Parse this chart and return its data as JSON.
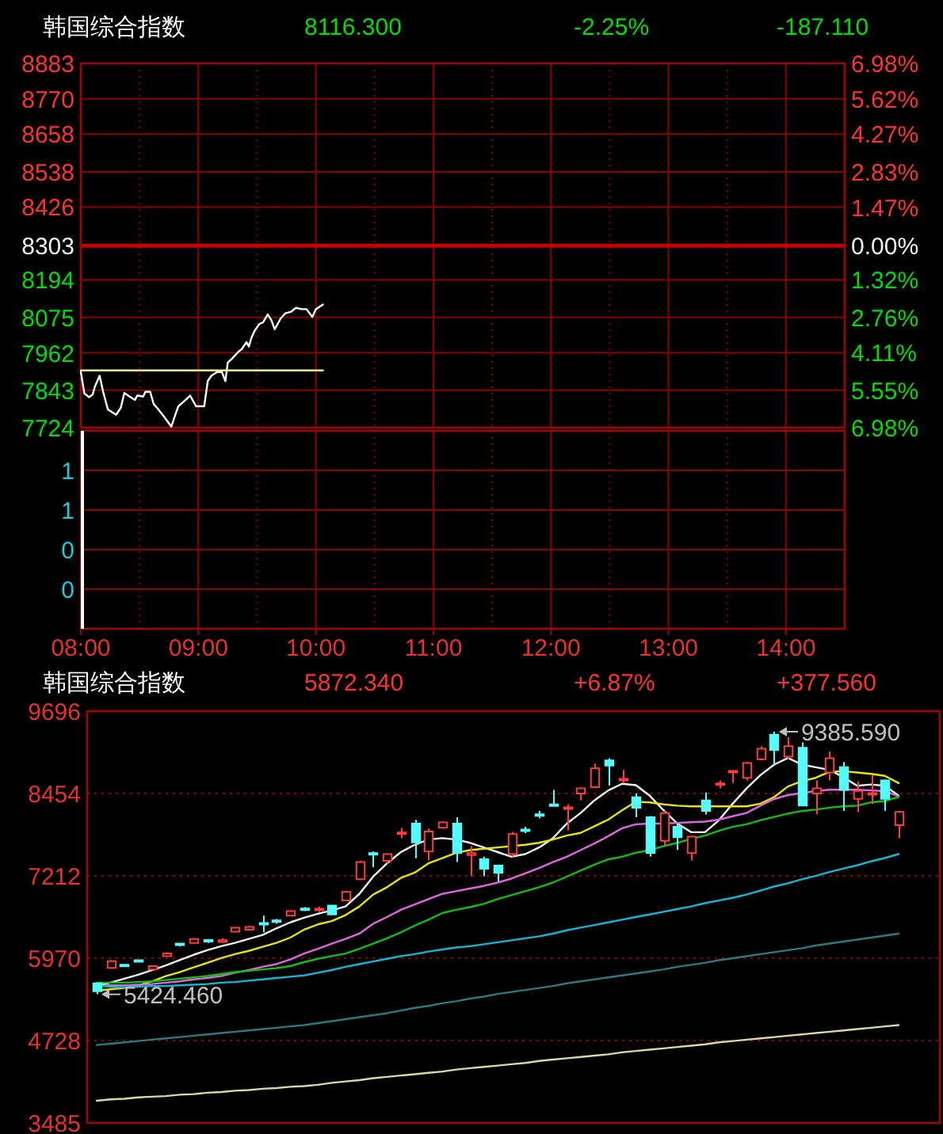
{
  "chart_data": [
    {
      "type": "line",
      "title": "韩国综合指数",
      "annotations": [
        "8116.300",
        "-2.25%",
        "-187.110"
      ],
      "series": [
        {
          "x": [
            8.0,
            8.03,
            8.07,
            8.1,
            8.12,
            8.16,
            8.19,
            8.23,
            8.3,
            8.34,
            8.37,
            8.41,
            8.46,
            8.48,
            8.53,
            8.55,
            8.59,
            8.62,
            8.66,
            8.72,
            8.77,
            8.8,
            8.83,
            8.89,
            8.93,
            8.98,
            9.05,
            9.08,
            9.11,
            9.16,
            9.2,
            9.23,
            9.25,
            9.29,
            9.34,
            9.37,
            9.41,
            9.43,
            9.45,
            9.48,
            9.52,
            9.55,
            9.59,
            9.62,
            9.65,
            9.7,
            9.74,
            9.79,
            9.83,
            9.88,
            9.92,
            9.97,
            10.0,
            10.06
          ],
          "values": [
            7901,
            7833,
            7821,
            7829,
            7855,
            7889,
            7838,
            7782,
            7765,
            7787,
            7834,
            7824,
            7812,
            7826,
            7823,
            7838,
            7838,
            7799,
            7782,
            7753,
            7727,
            7761,
            7792,
            7812,
            7826,
            7792,
            7792,
            7872,
            7889,
            7901,
            7901,
            7872,
            7931,
            7945,
            7965,
            7974,
            7996,
            7982,
            8008,
            8033,
            8054,
            8059,
            8084,
            8067,
            8037,
            8071,
            8088,
            8093,
            8105,
            8101,
            8101,
            8076,
            8101,
            8116
          ],
          "color": "#ffffff"
        },
        {
          "x": [
            8.0,
            10.06
          ],
          "values": [
            7906,
            7906
          ],
          "color": "#f0f080"
        }
      ],
      "xlim": [
        8,
        14.5
      ],
      "ylim": [
        7724,
        8883
      ],
      "yticks": [
        8883,
        8770,
        8658,
        8538,
        8426,
        8303,
        8194,
        8075,
        7962,
        7843,
        7724
      ],
      "y2lim": [
        -6.98,
        6.98
      ],
      "y2ticks": [
        {
          "value": 6.98,
          "label": "6.98%"
        },
        {
          "value": 5.62,
          "label": "5.62%"
        },
        {
          "value": 4.27,
          "label": "4.27%"
        },
        {
          "value": 2.83,
          "label": "2.83%"
        },
        {
          "value": 1.47,
          "label": "1.47%"
        },
        {
          "value": 0,
          "label": "0.00%"
        },
        {
          "value": -1.32,
          "label": "1.32%"
        },
        {
          "value": -2.76,
          "label": "2.76%"
        },
        {
          "value": -4.11,
          "label": "4.11%"
        },
        {
          "value": -5.55,
          "label": "5.55%"
        },
        {
          "value": -6.98,
          "label": "6.98%"
        }
      ],
      "ref_lines": [
        {
          "axis": "y",
          "value": 8303,
          "color": "#c80000"
        }
      ],
      "grid": true,
      "tick_labels": "y"
    },
    {
      "type": "bar",
      "series": [
        {
          "x": [
            8
          ],
          "values": [
            1
          ],
          "color": "#ffffff"
        }
      ],
      "xlim": [
        8,
        14.5
      ],
      "xticks": [
        {
          "value": 8,
          "label": "08:00"
        },
        {
          "value": 8.5,
          "label": null
        },
        {
          "value": 9,
          "label": "09:00"
        },
        {
          "value": 9.5,
          "label": null
        },
        {
          "value": 10,
          "label": "10:00"
        },
        {
          "value": 10.5,
          "label": null
        },
        {
          "value": 11,
          "label": "11:00"
        },
        {
          "value": 11.5,
          "label": null
        },
        {
          "value": 12,
          "label": "12:00"
        },
        {
          "value": 12.5,
          "label": null
        },
        {
          "value": 13,
          "label": "13:00"
        },
        {
          "value": 13.5,
          "label": null
        },
        {
          "value": 14,
          "label": "14:00"
        }
      ],
      "ylim": [
        0,
        1
      ],
      "yticks": [
        {
          "value": 0.8,
          "label": "1"
        },
        {
          "value": 0.6,
          "label": "1"
        },
        {
          "value": 0.4,
          "label": "0"
        },
        {
          "value": 0.2,
          "label": "0"
        }
      ],
      "grid": true
    },
    {
      "type": "candlestick",
      "title": "韩国综合指数",
      "annotations": [
        "5872.340",
        "+6.87%",
        "+377.560",
        "9385.590",
        "5424.460"
      ],
      "categories": [
        null,
        null,
        null,
        null,
        null,
        null,
        null,
        null,
        null,
        null,
        null,
        null,
        null,
        null,
        null,
        null,
        null,
        null,
        null,
        null,
        null,
        null,
        null,
        null,
        null,
        null,
        null,
        null,
        null,
        null,
        null,
        null,
        null,
        null,
        null,
        null,
        null,
        null,
        null,
        null,
        null,
        null,
        null,
        null,
        null,
        null,
        null,
        null,
        null,
        null,
        null,
        null,
        null,
        null,
        null,
        null,
        null,
        null,
        null
      ],
      "ohlc": [
        [
          5590,
          5602,
          5424.46,
          5470
        ],
        [
          5823,
          5940,
          5815,
          5925
        ],
        [
          5870,
          5880,
          5840,
          5855
        ],
        [
          5940,
          5950,
          5915,
          5925
        ],
        [
          5800,
          5860,
          5790,
          5850
        ],
        [
          6000,
          6060,
          5990,
          6040
        ],
        [
          6190,
          6200,
          6150,
          6170
        ],
        [
          6200,
          6275,
          6190,
          6260
        ],
        [
          6245,
          6260,
          6200,
          6225
        ],
        [
          6215,
          6270,
          6200,
          6240
        ],
        [
          6370,
          6440,
          6360,
          6430
        ],
        [
          6400,
          6460,
          6390,
          6440
        ],
        [
          6500,
          6610,
          6360,
          6480
        ],
        [
          6540,
          6560,
          6490,
          6520
        ],
        [
          6610,
          6690,
          6600,
          6680
        ],
        [
          6720,
          6740,
          6680,
          6700
        ],
        [
          6700,
          6747,
          6667,
          6715
        ],
        [
          6763,
          6775,
          6620,
          6628
        ],
        [
          6842,
          6985,
          6830,
          6969
        ],
        [
          7160,
          7437,
          7160,
          7421
        ],
        [
          7556,
          7580,
          7342,
          7540
        ],
        [
          7437,
          7550,
          7398,
          7540
        ],
        [
          7850,
          7937,
          7779,
          7866
        ],
        [
          8001,
          8056,
          7477,
          7715
        ],
        [
          7580,
          7921,
          7445,
          7882
        ],
        [
          7937,
          8033,
          7921,
          8017
        ],
        [
          8001,
          8096,
          7421,
          7556
        ],
        [
          7525,
          7660,
          7207,
          7556
        ],
        [
          7461,
          7501,
          7207,
          7318
        ],
        [
          7366,
          7382,
          7128,
          7255
        ],
        [
          7540,
          7874,
          7501,
          7842
        ],
        [
          7910,
          7953,
          7858,
          7900
        ],
        [
          8140,
          8191,
          8080,
          8130
        ],
        [
          8290,
          8509,
          8271,
          8280
        ],
        [
          8230,
          8294,
          7898,
          8245
        ],
        [
          8453,
          8540,
          8350,
          8532
        ],
        [
          8548,
          8906,
          8532,
          8834
        ],
        [
          8953,
          8985,
          8572,
          8874
        ],
        [
          8660,
          8810,
          8612,
          8675
        ],
        [
          8398,
          8453,
          8096,
          8239
        ],
        [
          8096,
          8112,
          7501,
          7556
        ],
        [
          7739,
          8191,
          7660,
          8159
        ],
        [
          7953,
          8001,
          7604,
          7794
        ],
        [
          7556,
          7818,
          7445,
          7802
        ],
        [
          8350,
          8469,
          8136,
          8191
        ],
        [
          8590,
          8652,
          8532,
          8605
        ],
        [
          8780,
          8810,
          8612,
          8795
        ],
        [
          8691,
          8929,
          8652,
          8913
        ],
        [
          8969,
          9167,
          8953,
          9128
        ],
        [
          9342,
          9385.59,
          8890,
          9112
        ],
        [
          9009,
          9302,
          8969,
          9167
        ],
        [
          9144,
          9223,
          8271,
          8271
        ],
        [
          8453,
          8652,
          8136,
          8532
        ],
        [
          8771,
          9088,
          8652,
          8985
        ],
        [
          8850,
          8929,
          8191,
          8509
        ],
        [
          8374,
          8636,
          8176,
          8493
        ],
        [
          8445,
          8731,
          8294,
          8460
        ],
        [
          8652,
          8667,
          8191,
          8374
        ],
        [
          7977,
          8191,
          7779,
          8176
        ]
      ],
      "colors": [
        "#54fcfc",
        "#ff3c3c",
        "#54fcfc",
        "#54fcfc",
        "#ff3c3c",
        "#ff3c3c",
        "#54fcfc",
        "#ff3c3c",
        "#54fcfc",
        "#ff3c3c",
        "#ff3c3c",
        "#ff3c3c",
        "#54fcfc",
        "#54fcfc",
        "#ff3c3c",
        "#54fcfc",
        "#ff3c3c",
        "#54fcfc",
        "#ff3c3c",
        "#ff3c3c",
        "#54fcfc",
        "#ff3c3c",
        "#ff3c3c",
        "#54fcfc",
        "#ff3c3c",
        "#ff3c3c",
        "#54fcfc",
        "#ff3c3c",
        "#54fcfc",
        "#54fcfc",
        "#ff3c3c",
        "#54fcfc",
        "#54fcfc",
        "#54fcfc",
        "#ff3c3c",
        "#ff3c3c",
        "#ff3c3c",
        "#54fcfc",
        "#ff3c3c",
        "#54fcfc",
        "#54fcfc",
        "#ff3c3c",
        "#54fcfc",
        "#ff3c3c",
        "#54fcfc",
        "#ff3c3c",
        "#ff3c3c",
        "#ff3c3c",
        "#ff3c3c",
        "#54fcfc",
        "#ff3c3c",
        "#54fcfc",
        "#ff3c3c",
        "#ff3c3c",
        "#54fcfc",
        "#ff3c3c",
        "#ff3c3c",
        "#54fcfc",
        "#ff3c3c"
      ],
      "series": [
        {
          "type": "line",
          "color": "#f0f0f0",
          "values": [
            5550,
            5600,
            5660,
            5720,
            5790,
            5860,
            5940,
            6020,
            6090,
            6150,
            6200,
            6260,
            6320,
            6420,
            6510,
            6580,
            6640,
            6690,
            6750,
            6940,
            7200,
            7400,
            7570,
            7680,
            7760,
            7780,
            7760,
            7710,
            7640,
            7570,
            7500,
            7540,
            7640,
            7780,
            8000,
            8160,
            8350,
            8500,
            8600,
            8580,
            8420,
            8200,
            8000,
            7870,
            7870,
            8050,
            8300,
            8530,
            8730,
            8890,
            8990,
            8890,
            8850,
            8810,
            8700,
            8570,
            8590,
            8570,
            8420
          ]
        },
        {
          "type": "line",
          "color": "#e6e600",
          "values": [
            5480,
            5500,
            5520,
            5560,
            5620,
            5700,
            5760,
            5830,
            5900,
            5970,
            6030,
            6080,
            6140,
            6200,
            6280,
            6400,
            6480,
            6530,
            6620,
            6750,
            6930,
            7040,
            7180,
            7260,
            7400,
            7480,
            7560,
            7600,
            7620,
            7640,
            7660,
            7680,
            7710,
            7760,
            7820,
            7860,
            7960,
            8060,
            8200,
            8330,
            8320,
            8290,
            8270,
            8260,
            8260,
            8260,
            8260,
            8260,
            8300,
            8400,
            8560,
            8640,
            8690,
            8780,
            8790,
            8770,
            8750,
            8720,
            8610
          ]
        },
        {
          "type": "line",
          "color": "#e066e0",
          "values": [
            5550,
            5560,
            5560,
            5570,
            5580,
            5600,
            5620,
            5650,
            5670,
            5700,
            5750,
            5790,
            5840,
            5880,
            5950,
            6040,
            6110,
            6190,
            6260,
            6340,
            6490,
            6590,
            6700,
            6780,
            6860,
            6940,
            6980,
            7020,
            7060,
            7110,
            7170,
            7250,
            7330,
            7420,
            7500,
            7600,
            7700,
            7810,
            7930,
            7990,
            8000,
            8000,
            8010,
            8020,
            8030,
            8060,
            8110,
            8160,
            8270,
            8370,
            8430,
            8460,
            8490,
            8510,
            8510,
            8510,
            8500,
            8490,
            8410
          ]
        },
        {
          "type": "line",
          "color": "#10c010",
          "values": [
            5600,
            5600,
            5600,
            5610,
            5620,
            5640,
            5660,
            5680,
            5700,
            5730,
            5760,
            5780,
            5800,
            5820,
            5850,
            5910,
            5960,
            6000,
            6040,
            6110,
            6190,
            6270,
            6360,
            6460,
            6550,
            6650,
            6700,
            6740,
            6790,
            6860,
            6920,
            6980,
            7040,
            7110,
            7200,
            7290,
            7380,
            7460,
            7500,
            7560,
            7600,
            7660,
            7710,
            7770,
            7820,
            7890,
            7950,
            7990,
            8050,
            8100,
            8150,
            8190,
            8210,
            8240,
            8260,
            8270,
            8320,
            8340,
            8400
          ]
        },
        {
          "type": "line",
          "color": "#10b8d8",
          "values": [
            5560,
            5540,
            5530,
            5540,
            5550,
            5550,
            5560,
            5570,
            5580,
            5600,
            5610,
            5630,
            5650,
            5670,
            5690,
            5710,
            5750,
            5790,
            5840,
            5880,
            5920,
            5960,
            6000,
            6030,
            6070,
            6100,
            6130,
            6150,
            6180,
            6210,
            6240,
            6270,
            6300,
            6340,
            6390,
            6430,
            6470,
            6510,
            6550,
            6590,
            6630,
            6670,
            6710,
            6750,
            6800,
            6840,
            6880,
            6930,
            6990,
            7050,
            7100,
            7160,
            7210,
            7270,
            7320,
            7370,
            7430,
            7480,
            7540
          ]
        },
        {
          "type": "line",
          "color": "#2b7a80",
          "values": [
            4660,
            4680,
            4700,
            4720,
            4740,
            4760,
            4780,
            4800,
            4820,
            4840,
            4860,
            4880,
            4900,
            4920,
            4940,
            4960,
            4990,
            5020,
            5050,
            5080,
            5110,
            5140,
            5180,
            5220,
            5250,
            5290,
            5320,
            5360,
            5390,
            5430,
            5460,
            5490,
            5520,
            5550,
            5590,
            5620,
            5650,
            5680,
            5710,
            5740,
            5770,
            5800,
            5840,
            5870,
            5900,
            5940,
            5970,
            6000,
            6030,
            6060,
            6090,
            6120,
            6160,
            6190,
            6220,
            6250,
            6280,
            6310,
            6340
          ]
        },
        {
          "type": "line",
          "color": "#d9d9a3",
          "values": [
            3820,
            3840,
            3850,
            3870,
            3880,
            3890,
            3910,
            3920,
            3940,
            3950,
            3970,
            3980,
            4000,
            4010,
            4030,
            4040,
            4060,
            4090,
            4110,
            4130,
            4160,
            4180,
            4200,
            4220,
            4240,
            4260,
            4290,
            4310,
            4330,
            4350,
            4370,
            4390,
            4420,
            4440,
            4460,
            4480,
            4500,
            4520,
            4550,
            4570,
            4590,
            4610,
            4630,
            4650,
            4670,
            4700,
            4720,
            4740,
            4760,
            4780,
            4800,
            4820,
            4840,
            4860,
            4880,
            4900,
            4920,
            4940,
            4960
          ]
        }
      ],
      "ylim": [
        3485,
        9696
      ],
      "yticks": [
        9696,
        8454,
        7212,
        5970,
        4728,
        3485
      ],
      "grid": "y"
    }
  ]
}
